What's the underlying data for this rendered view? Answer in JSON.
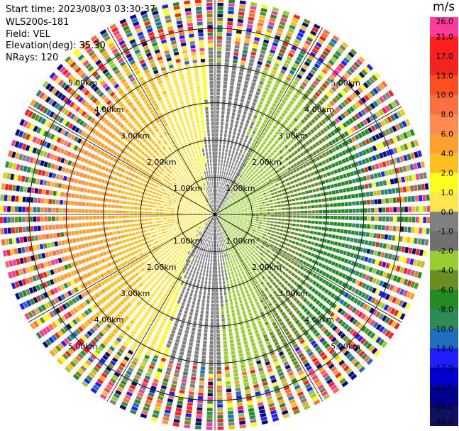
{
  "header": {
    "start_time": "Start time: 2023/08/03 03:30:37",
    "instrument": "WLS200s-181",
    "field": "Field: VEL",
    "elevation": "Elevation(deg): 35.30",
    "nrays": "NRays: 120"
  },
  "colorbar": {
    "unit": "m/s",
    "ticks": [
      "26.0",
      "21.0",
      "17.0",
      "13.0",
      "10.0",
      "8.0",
      "6.0",
      "4.0",
      "2.0",
      "1.0",
      "0.0",
      "-1.0",
      "-2.0",
      "-4.0",
      "-6.0",
      "-8.0",
      "-10.0",
      "-13.0",
      "-17.0",
      "-21.0",
      "-26.0",
      "-30.0"
    ],
    "colors": [
      "#ff3c9a",
      "#ff1f1f",
      "#f4241f",
      "#ff4e1f",
      "#ff6f3f",
      "#ff8b4f",
      "#ffa02f",
      "#ffbf1f",
      "#ffff1f",
      "#ffe64f",
      "#808080",
      "#707070",
      "#9acd32",
      "#6b8e23",
      "#228b22",
      "#2e8b57",
      "#1e6fbf",
      "#1f1fff",
      "#0000cc",
      "#00008b",
      "#101060"
    ]
  },
  "chart_data": {
    "type": "ppi",
    "field": "VEL",
    "elevation_deg": 35.3,
    "nrays": 120,
    "range_rings_km": [
      1.0,
      2.0,
      3.0,
      4.0,
      5.0
    ],
    "ring_labels": [
      "1.00km",
      "2.00km",
      "3.00km",
      "4.00km",
      "5.00km"
    ],
    "range_max_km": 5.8,
    "vmin": -30.0,
    "vmax": 26.0,
    "unit": "m/s"
  }
}
